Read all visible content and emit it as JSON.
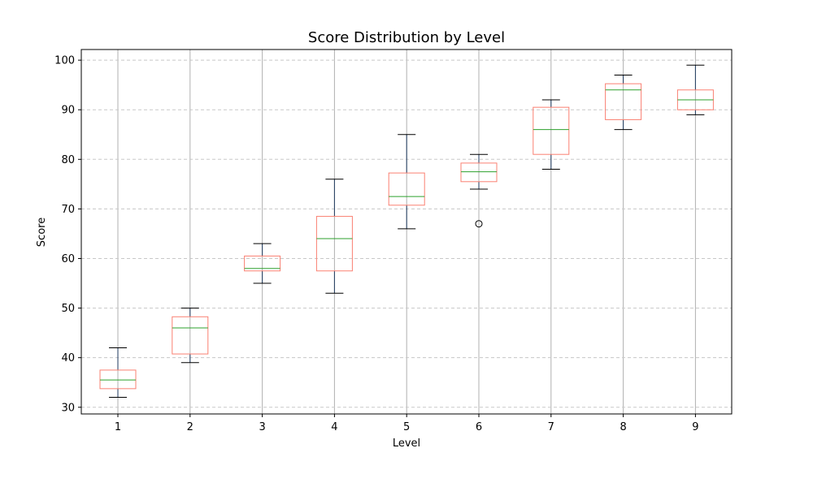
{
  "chart_data": {
    "type": "box",
    "title": "Score Distribution by Level",
    "xlabel": "Level",
    "ylabel": "Score",
    "categories": [
      "1",
      "2",
      "3",
      "4",
      "5",
      "6",
      "7",
      "8",
      "9"
    ],
    "boxes": [
      {
        "category": "1",
        "whisker_low": 32,
        "q1": 33.75,
        "median": 35.5,
        "q3": 37.5,
        "whisker_high": 42,
        "outliers": []
      },
      {
        "category": "2",
        "whisker_low": 39,
        "q1": 40.75,
        "median": 46,
        "q3": 48.25,
        "whisker_high": 50,
        "outliers": []
      },
      {
        "category": "3",
        "whisker_low": 55,
        "q1": 57.5,
        "median": 58,
        "q3": 60.5,
        "whisker_high": 63,
        "outliers": []
      },
      {
        "category": "4",
        "whisker_low": 53,
        "q1": 57.5,
        "median": 64,
        "q3": 68.5,
        "whisker_high": 76,
        "outliers": []
      },
      {
        "category": "5",
        "whisker_low": 66,
        "q1": 70.75,
        "median": 72.5,
        "q3": 77.25,
        "whisker_high": 85,
        "outliers": []
      },
      {
        "category": "6",
        "whisker_low": 74,
        "q1": 75.5,
        "median": 77.5,
        "q3": 79.25,
        "whisker_high": 81,
        "outliers": [
          67
        ]
      },
      {
        "category": "7",
        "whisker_low": 78,
        "q1": 81,
        "median": 86,
        "q3": 90.5,
        "whisker_high": 92,
        "outliers": []
      },
      {
        "category": "8",
        "whisker_low": 86,
        "q1": 88,
        "median": 94,
        "q3": 95.25,
        "whisker_high": 97,
        "outliers": []
      },
      {
        "category": "9",
        "whisker_low": 89,
        "q1": 90,
        "median": 92,
        "q3": 94,
        "whisker_high": 99,
        "outliers": []
      }
    ],
    "y_ticks": [
      30,
      40,
      50,
      60,
      70,
      80,
      90,
      100
    ],
    "ylim": [
      28.65,
      102.15
    ],
    "grid": {
      "x": true,
      "y": true,
      "y_style": "dashed"
    },
    "colors": {
      "box": "#fa8072",
      "median": "#2ca02c",
      "whisker": "#1f3a5f",
      "cap": "#000000",
      "outlier": "#000000",
      "grid": "#c8c8c8"
    }
  }
}
